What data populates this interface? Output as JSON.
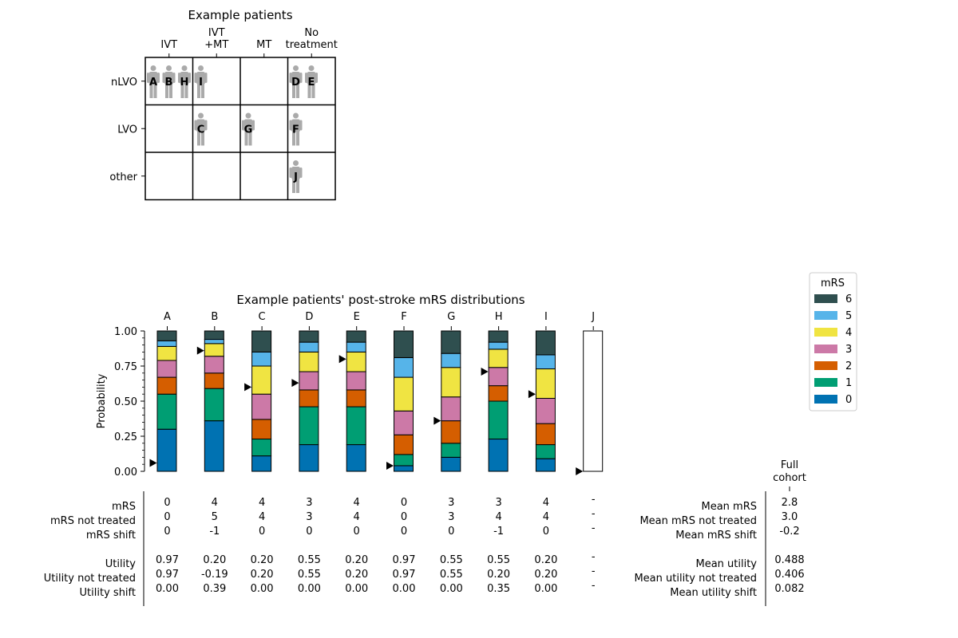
{
  "palette": {
    "mrs_colors": [
      "#0072B2",
      "#009E73",
      "#D55E00",
      "#CC79A7",
      "#F0E442",
      "#56B4E9",
      "#2F4F4F"
    ],
    "person_color": "#aaaaaa",
    "arrow_color": "#000000"
  },
  "grid_chart": {
    "title": "Example patients",
    "columns": [
      {
        "label_lines": [
          "IVT"
        ]
      },
      {
        "label_lines": [
          "IVT",
          "+MT"
        ]
      },
      {
        "label_lines": [
          "MT"
        ]
      },
      {
        "label_lines": [
          "No",
          "treatment"
        ]
      }
    ],
    "rows": [
      "nLVO",
      "LVO",
      "other"
    ],
    "patients": [
      {
        "id": "A",
        "row": 0,
        "col": 0,
        "slot": 0
      },
      {
        "id": "B",
        "row": 0,
        "col": 0,
        "slot": 1
      },
      {
        "id": "H",
        "row": 0,
        "col": 0,
        "slot": 2
      },
      {
        "id": "I",
        "row": 0,
        "col": 1,
        "slot": 0
      },
      {
        "id": "D",
        "row": 0,
        "col": 3,
        "slot": 0
      },
      {
        "id": "E",
        "row": 0,
        "col": 3,
        "slot": 1
      },
      {
        "id": "C",
        "row": 1,
        "col": 1,
        "slot": 0
      },
      {
        "id": "G",
        "row": 1,
        "col": 2,
        "slot": 0
      },
      {
        "id": "F",
        "row": 1,
        "col": 3,
        "slot": 0
      },
      {
        "id": "J",
        "row": 2,
        "col": 3,
        "slot": 0
      }
    ]
  },
  "chart_data": {
    "type": "bar",
    "stacked": true,
    "title": "Example patients' post-stroke mRS distributions",
    "ylabel": "Probability",
    "ylim": [
      0,
      1
    ],
    "yticks": [
      "0.00",
      "0.25",
      "0.50",
      "0.75",
      "1.00"
    ],
    "yminor_step": 0.05,
    "categories": [
      "A",
      "B",
      "C",
      "D",
      "E",
      "F",
      "G",
      "H",
      "I",
      "J"
    ],
    "cumulative_bounds": [
      [
        0.3,
        0.55,
        0.67,
        0.79,
        0.89,
        0.93,
        1.0
      ],
      [
        0.36,
        0.59,
        0.7,
        0.82,
        0.91,
        0.94,
        1.0
      ],
      [
        0.11,
        0.23,
        0.37,
        0.55,
        0.75,
        0.85,
        1.0
      ],
      [
        0.19,
        0.46,
        0.58,
        0.71,
        0.85,
        0.92,
        1.0
      ],
      [
        0.19,
        0.46,
        0.58,
        0.71,
        0.85,
        0.92,
        1.0
      ],
      [
        0.04,
        0.12,
        0.26,
        0.43,
        0.67,
        0.81,
        1.0
      ],
      [
        0.1,
        0.2,
        0.36,
        0.53,
        0.74,
        0.84,
        1.0
      ],
      [
        0.23,
        0.5,
        0.61,
        0.74,
        0.87,
        0.92,
        1.0
      ],
      [
        0.09,
        0.19,
        0.34,
        0.52,
        0.73,
        0.83,
        1.0
      ],
      null
    ],
    "marker_positions": [
      0.06,
      0.86,
      0.6,
      0.63,
      0.8,
      0.04,
      0.36,
      0.71,
      0.55,
      0.0
    ],
    "legend": {
      "title": "mRS",
      "position": "right",
      "entries": [
        "6",
        "5",
        "4",
        "3",
        "2",
        "1",
        "0"
      ]
    }
  },
  "table": {
    "row_labels": [
      "mRS",
      "mRS not treated",
      "mRS shift",
      "Utility",
      "Utility not treated",
      "Utility shift"
    ],
    "values": [
      [
        "0",
        "0",
        "0",
        "0.97",
        "0.97",
        "0.00"
      ],
      [
        "4",
        "5",
        "-1",
        "0.20",
        "-0.19",
        "0.39"
      ],
      [
        "4",
        "4",
        "0",
        "0.20",
        "0.20",
        "0.00"
      ],
      [
        "3",
        "3",
        "0",
        "0.55",
        "0.55",
        "0.00"
      ],
      [
        "4",
        "4",
        "0",
        "0.20",
        "0.20",
        "0.00"
      ],
      [
        "0",
        "0",
        "0",
        "0.97",
        "0.97",
        "0.00"
      ],
      [
        "3",
        "3",
        "0",
        "0.55",
        "0.55",
        "0.00"
      ],
      [
        "3",
        "4",
        "-1",
        "0.55",
        "0.20",
        "0.35"
      ],
      [
        "4",
        "4",
        "0",
        "0.20",
        "0.20",
        "0.00"
      ],
      [
        "-",
        "-",
        "-",
        "-",
        "-",
        "-"
      ]
    ]
  },
  "cohort": {
    "header_lines": [
      "Full",
      "cohort"
    ],
    "row_labels": [
      "Mean mRS",
      "Mean mRS not treated",
      "Mean mRS shift",
      "Mean utility",
      "Mean utility not treated",
      "Mean utility shift"
    ],
    "values": [
      "2.8",
      "3.0",
      "-0.2",
      "0.488",
      "0.406",
      "0.082"
    ]
  }
}
